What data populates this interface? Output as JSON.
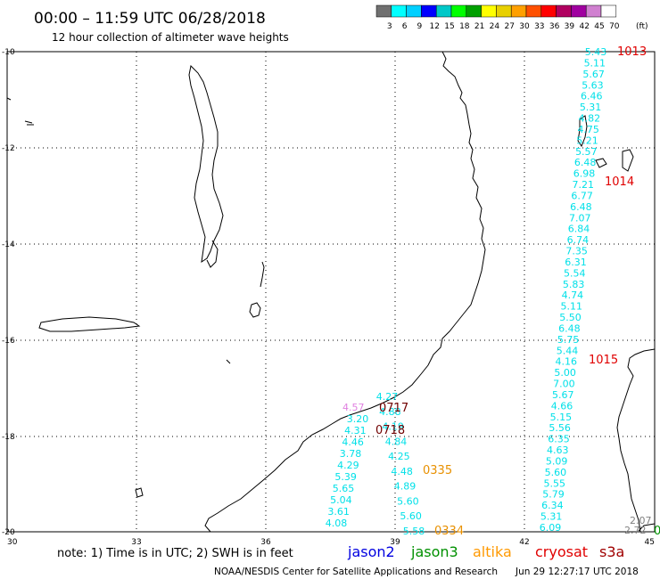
{
  "header": {
    "title": "00:00 – 11:59 UTC 06/28/2018",
    "subtitle": "12 hour collection of altimeter wave heights"
  },
  "legend": {
    "labels": [
      "3",
      "6",
      "9",
      "12",
      "15",
      "18",
      "21",
      "24",
      "27",
      "30",
      "33",
      "36",
      "39",
      "42",
      "45",
      "70"
    ],
    "unit": "(ft)",
    "colors": [
      "#707070",
      "#00ffff",
      "#00d0ff",
      "#0000ff",
      "#00c8c8",
      "#00ff00",
      "#00a000",
      "#ffff00",
      "#e8d000",
      "#ffa000",
      "#ff5000",
      "#ff0000",
      "#b00060",
      "#a000a0",
      "#d080d0",
      "#ffffff"
    ]
  },
  "axes": {
    "lat_labels": [
      "-10",
      "-12",
      "-14",
      "-16",
      "-18",
      "-20"
    ],
    "lon_labels": [
      "30",
      "33",
      "36",
      "39",
      "42",
      "45"
    ]
  },
  "tracks": {
    "east": {
      "color": "#00e0e8",
      "values": [
        "5.43",
        "5.11",
        "5.67",
        "5.63",
        "6.46",
        "5.31",
        "4.82",
        "4.75",
        "5.21",
        "5.57",
        "6.48",
        "6.98",
        "7.21",
        "6.77",
        "6.48",
        "7.07",
        "6.84",
        "6.74",
        "7.35",
        "6.31",
        "5.54",
        "5.83",
        "4.74",
        "5.11",
        "5.50",
        "6.48",
        "5.75",
        "5.44",
        "4.16",
        "5.00",
        "7.00",
        "5.67",
        "4.66",
        "5.15",
        "5.56",
        "6.35",
        "4.63",
        "5.09",
        "5.60",
        "5.55",
        "5.79",
        "6.34",
        "5.31",
        "6.09"
      ]
    },
    "west": {
      "color": "#00e0e8",
      "values": [
        "3.20",
        "4.31",
        "4.46",
        "3.78",
        "4.29",
        "5.39",
        "5.65",
        "5.04",
        "3.61",
        "4.08"
      ]
    },
    "middle": {
      "color": "#00e0e8",
      "values": [
        "4.27",
        "4.88",
        "4.19",
        "4.84",
        "4.25",
        "4.48",
        "4.89",
        "5.60",
        "5.60",
        "5.58"
      ]
    },
    "pink_value": "4.57",
    "gray_values": [
      "2.07",
      "2.72"
    ]
  },
  "time_labels": {
    "t1013": "1013",
    "t1014": "1014",
    "t1015": "1015",
    "t0717": "0717",
    "t0718": "0718",
    "t0335": "0335",
    "t0334": "0334",
    "edge_green": "0"
  },
  "footer": {
    "note": "note: 1) Time is in UTC; 2) SWH is in feet",
    "sat_jason2": "jason2",
    "sat_jason3": "jason3",
    "sat_altika": "altika",
    "sat_cryosat": "cryosat",
    "sat_s3a": "s3a",
    "credit": "NOAA/NESDIS Center for Satellite Applications and Research",
    "timestamp": "Jun 29 12:27:17 UTC 2018"
  },
  "colors": {
    "time_red": "#e00000",
    "time_maroon": "#700000",
    "time_orange": "#e89000",
    "jason2": "#0000e0",
    "jason3": "#009000",
    "altika": "#ff9900",
    "cryosat": "#e00000",
    "s3a": "#a00000",
    "pink": "#e080e0",
    "gray": "#808080"
  }
}
